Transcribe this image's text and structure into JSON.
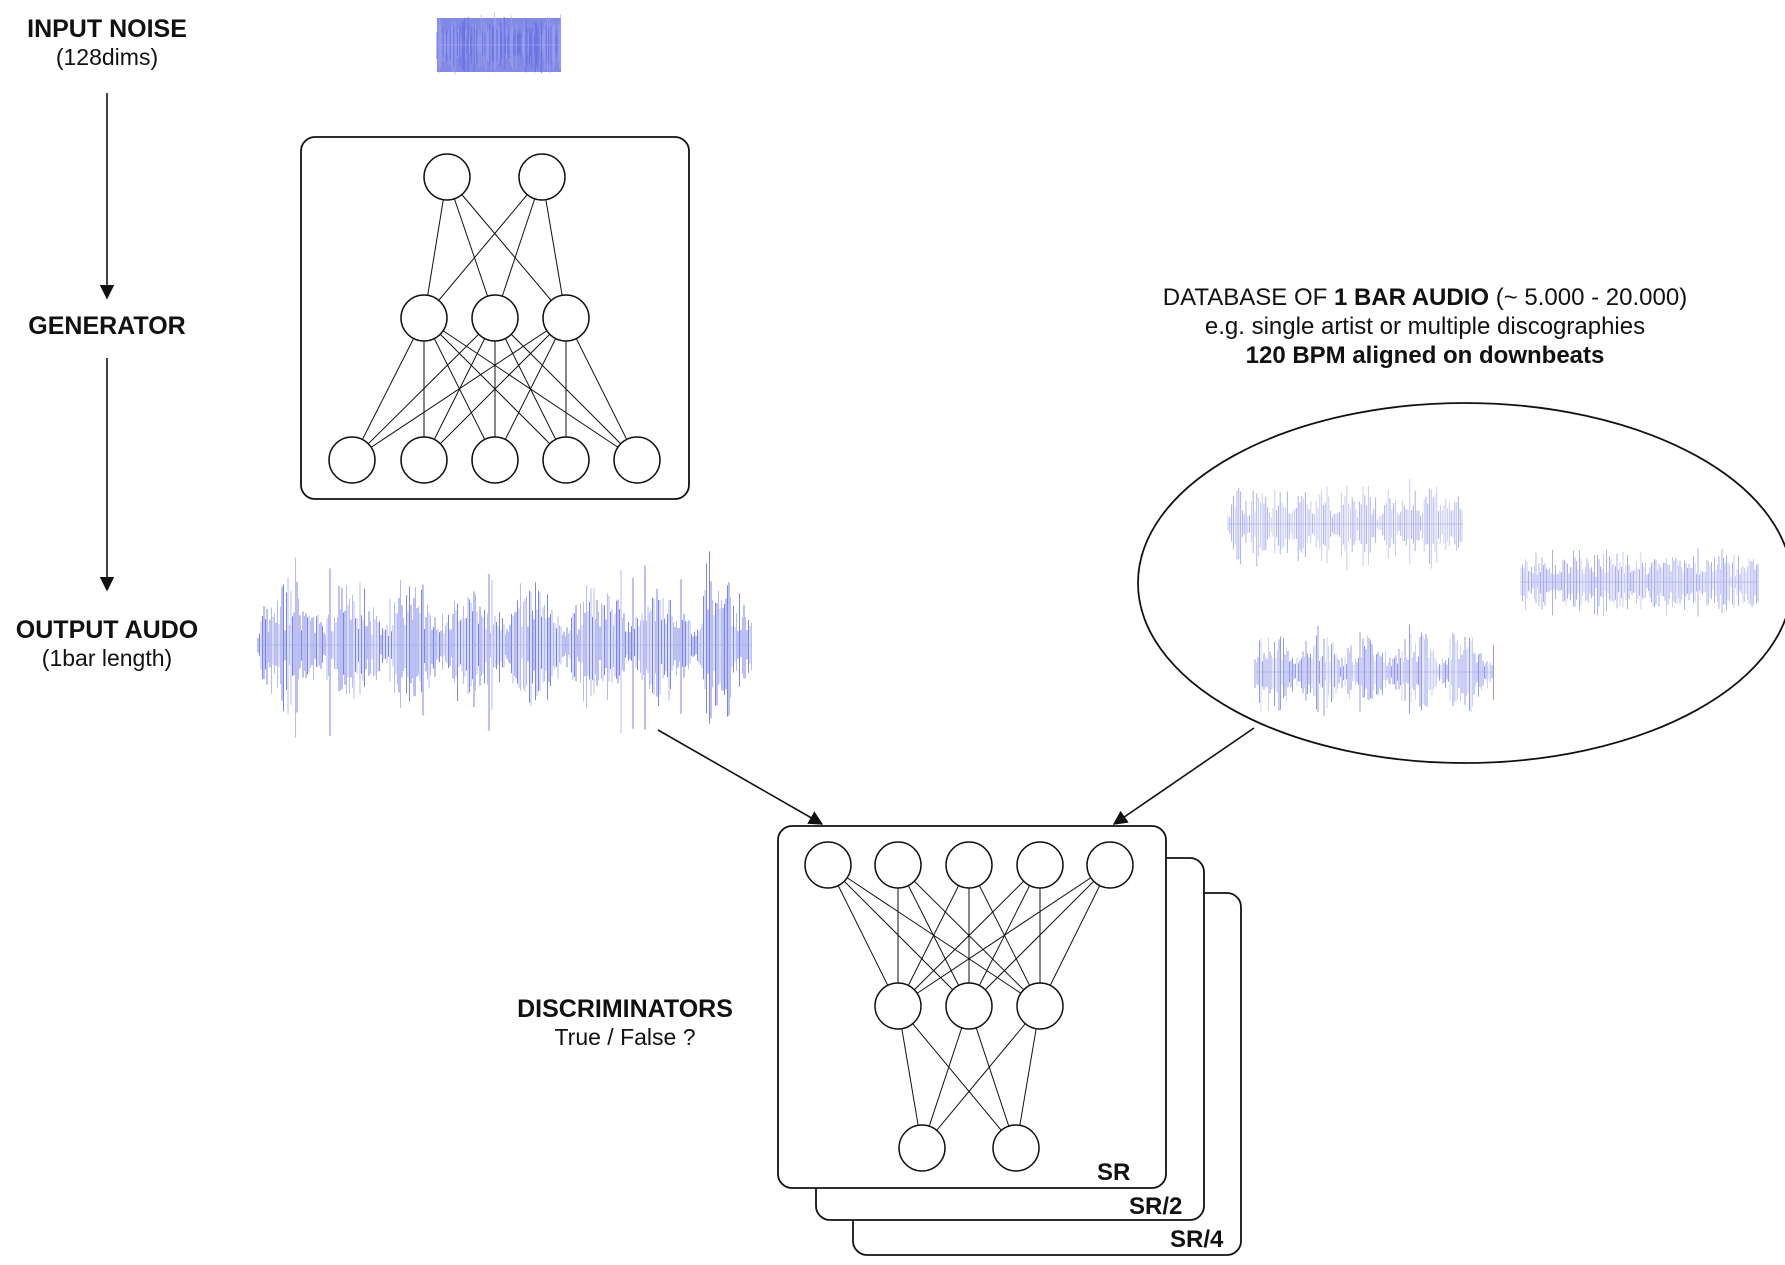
{
  "labels": {
    "input_noise": {
      "title": "INPUT NOISE",
      "sub": "(128dims)"
    },
    "generator": {
      "title": "GENERATOR"
    },
    "output_audio": {
      "title": "OUTPUT AUDO",
      "sub": "(1bar length)"
    },
    "discriminators": {
      "title": "DISCRIMINATORS",
      "sub": "True / False ?"
    },
    "database": {
      "line1_prefix": "DATABASE OF ",
      "line1_bold": "1 BAR AUDIO",
      "line1_suffix": " (~ 5.000 - 20.000)",
      "line2": "e.g. single artist or multiple discographies",
      "line3": "120 BPM aligned on downbeats"
    }
  },
  "sample_rates": [
    "SR",
    "SR/2",
    "SR/4"
  ],
  "colors": {
    "waveform": "#6670e0",
    "waveform_light": "#a4aaf0",
    "stroke": "#111111"
  }
}
